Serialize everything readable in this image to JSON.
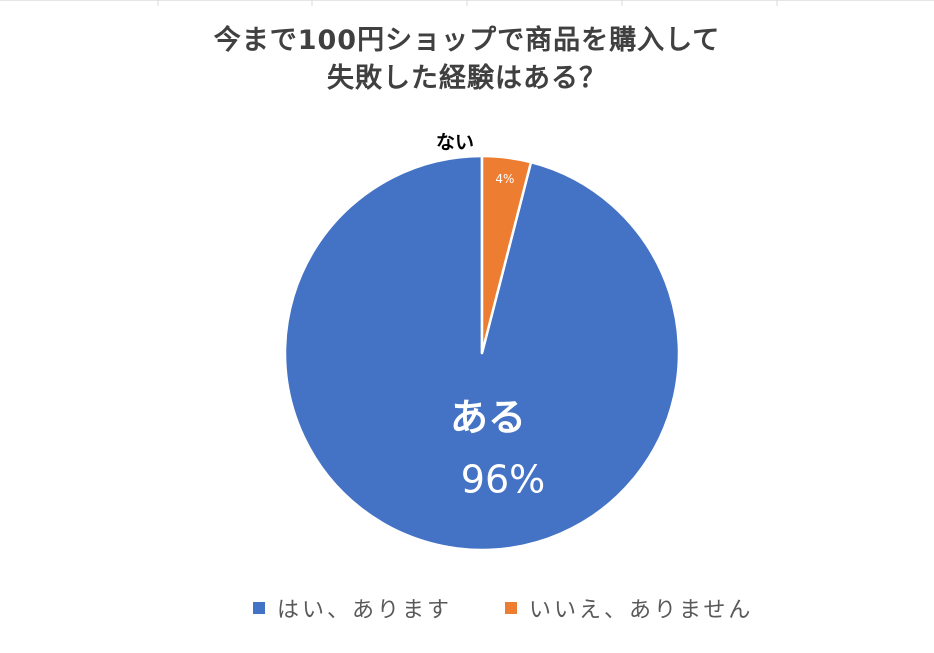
{
  "chart_data": {
    "type": "pie",
    "title_lines": [
      "今まで100円ショップで商品を購入して",
      "失敗した経験はある？"
    ],
    "slices": [
      {
        "label": "ある",
        "percent_label": "96%",
        "value": 96,
        "color": "#4472C4",
        "legend": "はい、あります"
      },
      {
        "label": "ない",
        "percent_label": "4%",
        "value": 4,
        "color": "#ED7D31",
        "legend": "いいえ、ありません"
      }
    ],
    "start_angle_deg": 0,
    "direction": "counterclockwise",
    "legend_position": "bottom"
  }
}
